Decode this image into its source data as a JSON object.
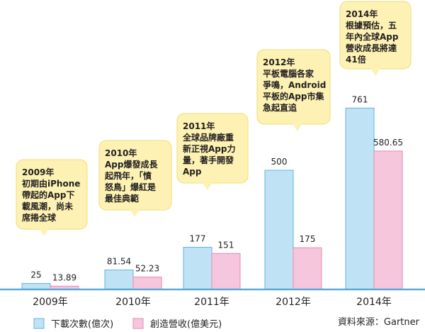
{
  "chart_data": {
    "type": "bar",
    "categories": [
      "2009年",
      "2010年",
      "2011年",
      "2012年",
      "2014年"
    ],
    "series": [
      {
        "name": "下載次數(億次)",
        "values": [
          25,
          81.54,
          177,
          500,
          761
        ],
        "labels": [
          "25",
          "81.54",
          "177",
          "500",
          "761"
        ]
      },
      {
        "name": "創造營收(億美元)",
        "values": [
          13.89,
          52.23,
          151,
          175,
          580.65
        ],
        "labels": [
          "13.89",
          "52.23",
          "151",
          "175",
          "580.65"
        ]
      }
    ],
    "ylim": [
      0,
      800
    ],
    "grid": false,
    "legend": "bottom-left",
    "annotations": [
      [
        "2009年",
        "初期由iPhone",
        "帶起的App下",
        "載風潮，尚未",
        "席捲全球"
      ],
      [
        "2010年",
        "App爆發成長",
        "起飛年，「憤",
        "怒鳥」爆紅是",
        "最佳典範"
      ],
      [
        "2011年",
        "全球品牌廠重",
        "新正視App力",
        "量，著手開發",
        "App"
      ],
      [
        "2012年",
        "平板電腦各家",
        "爭鳴，Android",
        "平板的App市集",
        "急起直追"
      ],
      [
        "2014年",
        "根據預估，五",
        "年內全球App",
        "營收成長將達",
        "41倍"
      ]
    ],
    "source": "資料來源：Gartner",
    "colors": {
      "downloads": "#bfe3f5",
      "downloads_edge": "#5fb3e0",
      "revenue": "#f6c6dc",
      "revenue_edge": "#e58bb5",
      "note_fill": "#fdf2b3",
      "note_edge": "#f0dc7a",
      "axis": "#5aa9d6"
    }
  }
}
